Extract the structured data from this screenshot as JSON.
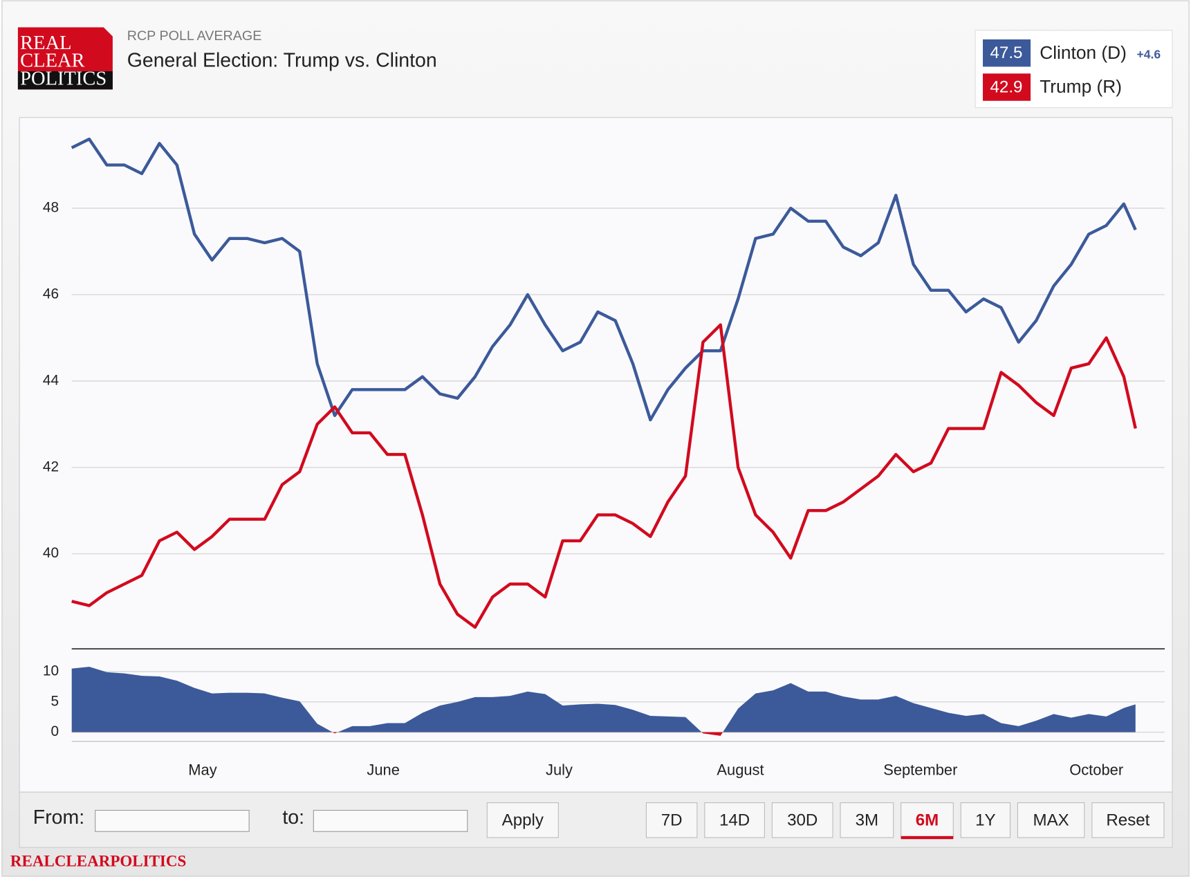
{
  "header": {
    "logo": [
      "REAL",
      "CLEAR",
      "POLITICS"
    ],
    "kicker": "RCP POLL AVERAGE",
    "title": "General Election: Trump vs. Clinton"
  },
  "chart_data": [
    {
      "type": "line",
      "x": [
        0,
        3,
        6,
        9,
        12,
        15,
        18,
        21,
        24,
        27,
        30,
        33,
        36,
        39,
        42,
        45,
        48,
        51,
        54,
        57,
        60,
        63,
        66,
        69,
        72,
        75,
        78,
        81,
        84,
        87,
        90,
        93,
        96,
        99,
        102,
        105,
        108,
        111,
        114,
        117,
        120,
        123,
        126,
        129,
        132,
        135,
        138,
        141,
        144,
        147,
        150,
        153,
        156,
        159,
        162,
        165,
        168,
        171,
        174,
        177,
        180,
        182
      ],
      "xlim": [
        0,
        187
      ],
      "ylim": [
        37.8,
        50.1
      ],
      "yticks": [
        40,
        42,
        44,
        46,
        48
      ],
      "grid": true,
      "series": [
        {
          "name": "Clinton (D)",
          "color": "#3c5a9a",
          "values": [
            49.4,
            49.6,
            49.0,
            49.0,
            48.8,
            49.5,
            49.0,
            47.4,
            46.8,
            47.3,
            47.3,
            47.2,
            47.3,
            47.0,
            44.4,
            43.2,
            43.8,
            43.8,
            43.8,
            43.8,
            44.1,
            43.7,
            43.6,
            44.1,
            44.8,
            45.3,
            46.0,
            45.3,
            44.7,
            44.9,
            45.6,
            45.4,
            44.4,
            43.1,
            43.8,
            44.3,
            44.7,
            44.7,
            45.9,
            47.3,
            47.4,
            48.0,
            47.7,
            47.7,
            47.1,
            46.9,
            47.2,
            48.3,
            46.7,
            46.1,
            46.1,
            45.6,
            45.9,
            45.7,
            44.9,
            45.4,
            46.2,
            46.7,
            47.4,
            47.6,
            48.1,
            47.5
          ]
        },
        {
          "name": "Trump (R)",
          "color": "#d20a1e",
          "values": [
            38.9,
            38.8,
            39.1,
            39.3,
            39.5,
            40.3,
            40.5,
            40.1,
            40.4,
            40.8,
            40.8,
            40.8,
            41.6,
            41.9,
            43.0,
            43.4,
            42.8,
            42.8,
            42.3,
            42.3,
            40.9,
            39.3,
            38.6,
            38.3,
            39.0,
            39.3,
            39.3,
            39.0,
            40.3,
            40.3,
            40.9,
            40.9,
            40.7,
            40.4,
            41.2,
            41.8,
            44.9,
            45.3,
            42.0,
            40.9,
            40.5,
            39.9,
            41.0,
            41.0,
            41.2,
            41.5,
            41.8,
            42.3,
            41.9,
            42.1,
            42.9,
            42.9,
            42.9,
            44.2,
            43.9,
            43.5,
            43.2,
            44.3,
            44.4,
            45.0,
            44.1,
            42.9
          ]
        }
      ],
      "legend_values": [
        47.5,
        42.9
      ],
      "legend_spread": {
        "value": 4.6,
        "label": "+4.6"
      }
    },
    {
      "type": "area",
      "x": [
        0,
        3,
        6,
        9,
        12,
        15,
        18,
        21,
        24,
        27,
        30,
        33,
        36,
        39,
        42,
        45,
        48,
        51,
        54,
        57,
        60,
        63,
        66,
        69,
        72,
        75,
        78,
        81,
        84,
        87,
        90,
        93,
        96,
        99,
        102,
        105,
        108,
        111,
        114,
        117,
        120,
        123,
        126,
        129,
        132,
        135,
        138,
        141,
        144,
        147,
        150,
        153,
        156,
        159,
        162,
        165,
        168,
        171,
        174,
        177,
        180,
        182
      ],
      "xlim": [
        0,
        187
      ],
      "xticks": [
        {
          "value": 22.4,
          "label": "May"
        },
        {
          "value": 53.3,
          "label": "June"
        },
        {
          "value": 83.4,
          "label": "July"
        },
        {
          "value": 114.4,
          "label": "August"
        },
        {
          "value": 145.2,
          "label": "September"
        },
        {
          "value": 175.3,
          "label": "October"
        }
      ],
      "ylim": [
        -1.5,
        13.75
      ],
      "yticks": [
        0,
        5,
        10
      ],
      "grid": true,
      "series": [
        {
          "color": "#3c5a9a",
          "negative_color": "#d20a1e",
          "values": [
            10.5,
            10.8,
            9.9,
            9.7,
            9.3,
            9.2,
            8.5,
            7.3,
            6.4,
            6.5,
            6.5,
            6.4,
            5.7,
            5.1,
            1.4,
            -0.2,
            1.0,
            1.0,
            1.5,
            1.5,
            3.2,
            4.4,
            5.0,
            5.8,
            5.8,
            6.0,
            6.7,
            6.3,
            4.4,
            4.6,
            4.7,
            4.5,
            3.7,
            2.7,
            2.6,
            2.5,
            -0.2,
            -0.6,
            3.9,
            6.4,
            6.9,
            8.1,
            6.7,
            6.7,
            5.9,
            5.4,
            5.4,
            6.0,
            4.8,
            4.0,
            3.2,
            2.7,
            3.0,
            1.5,
            1.0,
            1.9,
            3.0,
            2.4,
            3.0,
            2.6,
            4.0,
            4.6
          ]
        }
      ]
    }
  ],
  "controls": {
    "from": "From:",
    "to": "to:",
    "apply": "Apply",
    "ranges": [
      "7D",
      "14D",
      "30D",
      "3M",
      "6M",
      "1Y",
      "MAX",
      "Reset"
    ],
    "active_range": 4
  },
  "footer": "REALCLEARPOLITICS"
}
